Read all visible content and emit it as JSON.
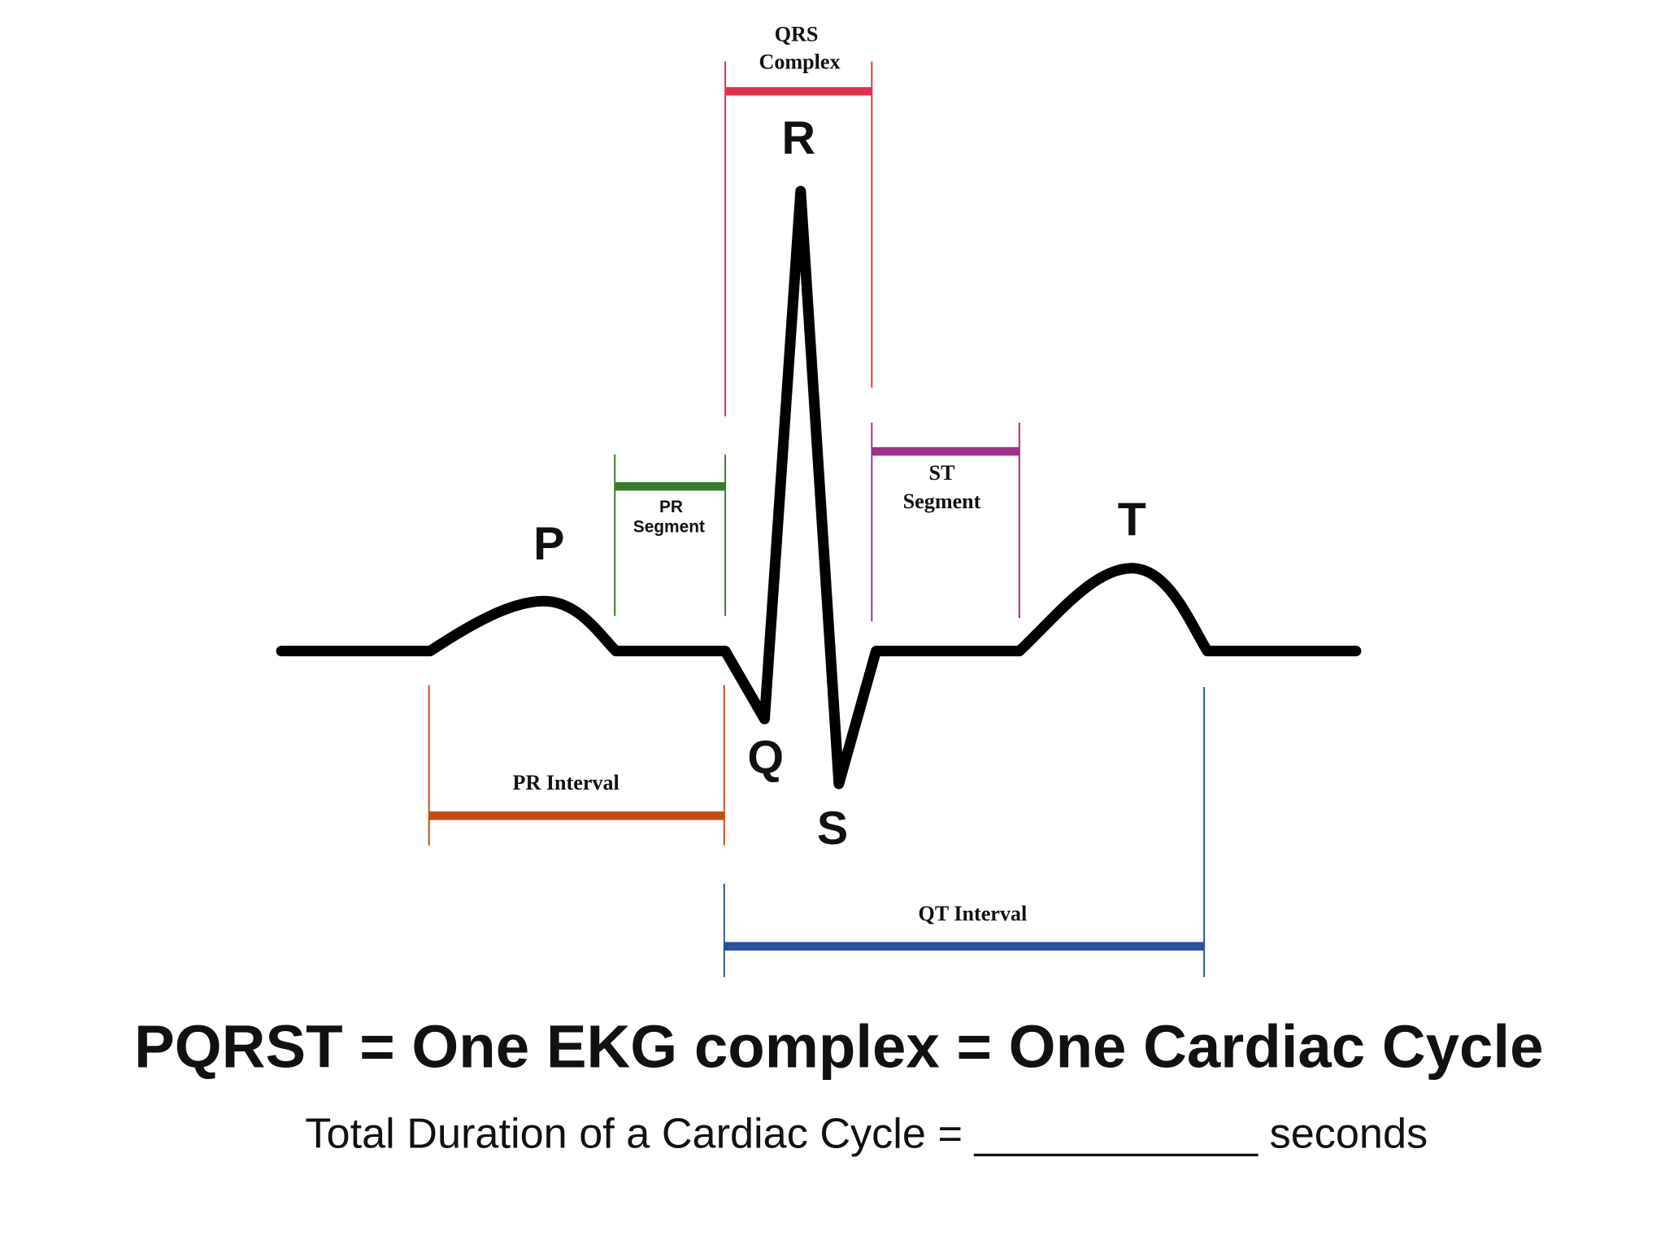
{
  "waves": {
    "P": "P",
    "Q": "Q",
    "R": "R",
    "S": "S",
    "T": "T"
  },
  "intervals": {
    "qrs_complex": [
      "QRS",
      "Complex"
    ],
    "pr_segment": [
      "PR",
      "Segment"
    ],
    "st_segment": [
      "ST",
      "Segment"
    ],
    "pr_interval": "PR Interval",
    "qt_interval": "QT Interval"
  },
  "title": "PQRST = One EKG complex = One Cardiac Cycle",
  "subtitle": "Total Duration of a Cardiac Cycle = ____________ seconds"
}
